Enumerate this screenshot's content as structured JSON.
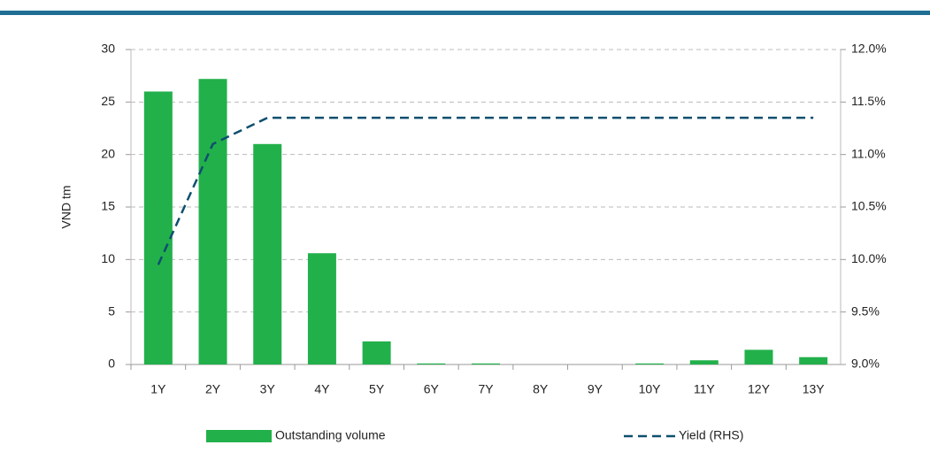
{
  "chart_data": {
    "type": "bar",
    "y_label": "VND tm",
    "categories": [
      "1Y",
      "2Y",
      "3Y",
      "4Y",
      "5Y",
      "6Y",
      "7Y",
      "8Y",
      "9Y",
      "10Y",
      "11Y",
      "12Y",
      "13Y"
    ],
    "series": [
      {
        "name": "Outstanding volume",
        "type": "bar",
        "color": "#22b04b",
        "values": [
          26,
          27.2,
          21,
          10.6,
          2.2,
          0.1,
          0.1,
          0,
          0,
          0.1,
          0.4,
          1.4,
          0.7
        ]
      },
      {
        "name": "Yield (RHS)",
        "type": "line",
        "axis": "y2",
        "color": "#0e4f6e",
        "dashed": true,
        "values": [
          9.95,
          11.1,
          11.35,
          11.35,
          11.35,
          11.35,
          11.35,
          11.35,
          11.35,
          11.35,
          11.35,
          11.35,
          11.35
        ]
      }
    ],
    "ylim": [
      0,
      30
    ],
    "yticks": [
      0,
      5,
      10,
      15,
      20,
      25,
      30
    ],
    "y2lim": [
      9,
      12
    ],
    "y2ticks": [
      {
        "value": 9,
        "label": "9.0%"
      },
      {
        "value": 9.5,
        "label": "9.5%"
      },
      {
        "value": 10,
        "label": "10.0%"
      },
      {
        "value": 10.5,
        "label": "10.5%"
      },
      {
        "value": 11,
        "label": "11.0%"
      },
      {
        "value": 11.5,
        "label": "11.5%"
      },
      {
        "value": 12,
        "label": "12.0%"
      }
    ],
    "grid": true
  }
}
